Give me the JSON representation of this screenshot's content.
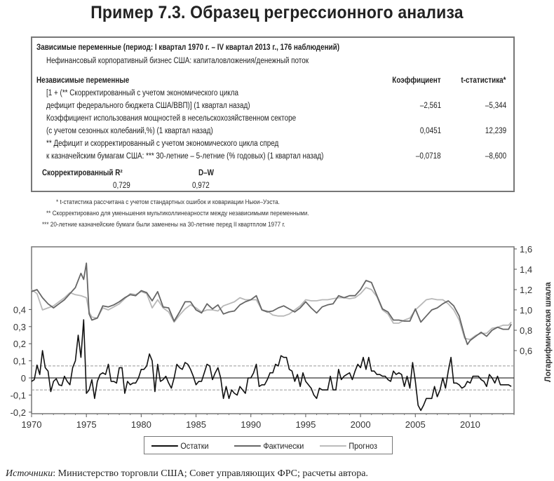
{
  "title": "Пример 7.3. Образец регрессионного анализа",
  "table": {
    "dependent_header": "Зависимые переменные (период: I квартал 1970 г. – IV квартал 2013 г., 176 наблюдений)",
    "dependent_var": "Нефинансовый корпоративный бизнес США: капиталовложения/денежный поток",
    "independent_header": "Независимые переменные",
    "coef_header": "Коэффициент",
    "tstat_header": "t-статистика*",
    "rows": [
      {
        "line1": "[1 + (** Скорректированный с учетом экономического цикла",
        "line2": "дефицит федерального бюджета США/ВВП)] (1 квартал назад)",
        "coef": "–2,561",
        "tstat": "–5,344"
      },
      {
        "line1": "Коэффициент использования мощностей в несельскохозяйственном секторе",
        "line2": "(с учетом сезонных колебаний,%) (1 квартал назад)",
        "coef": "0,0451",
        "tstat": "12,239"
      },
      {
        "line1": "** Дефицит и скорректированный с учетом экономического цикла спред",
        "line2": "к казначейским бумагам США: *** 30-летние – 5-летние (% годовых) (1 квартал назад)",
        "coef": "–0,0718",
        "tstat": "–8,600"
      }
    ],
    "r2_label": "Скорректированный R²",
    "r2_value": "0,729",
    "dw_label": "D–W",
    "dw_value": "0,972"
  },
  "footnotes": [
    "* t-статистика рассчитана с учетом стандартных ошибок и ковариации Ньюи–Уэста.",
    "** Скорректировано для уменьшения мультиколлинеарности между независимыми переменными.",
    "*** 20-летние казначейские бумаги были заменены на 30-летние перед II квартплом 1977 г."
  ],
  "chart_data": {
    "type": "line",
    "x_ticks": [
      "1970",
      "1975",
      "1980",
      "1985",
      "1990",
      "1995",
      "2000",
      "2005",
      "2010"
    ],
    "x_range": [
      1970,
      2014
    ],
    "left_axis": {
      "ticks": [
        "0,4",
        "0,3",
        "0,2",
        "0,1",
        "0",
        "-0,1",
        "-0,2"
      ],
      "range": [
        -0.2,
        0.4
      ]
    },
    "right_axis": {
      "label": "Логарифмическая шкала",
      "ticks": [
        "1,6",
        "1,4",
        "1,2",
        "1,0",
        "0,8",
        "0,6"
      ],
      "range": [
        0.6,
        1.6
      ],
      "scale": "log"
    },
    "reference_lines": [
      0.07,
      0,
      -0.07
    ],
    "series": [
      {
        "name": "Остатки",
        "axis": "left",
        "color": "#111111",
        "values": [
          -0.02,
          -0.01,
          0.075,
          0.02,
          0.16,
          0.06,
          0.04,
          -0.08,
          -0.02,
          -0.005,
          -0.04,
          -0.045,
          0.01,
          -0.02,
          -0.04,
          0.06,
          0.1,
          0.25,
          0.12,
          0.34,
          -0.09,
          -0.07,
          -0.01,
          -0.12,
          -0.02,
          0.02,
          0.03,
          0.02,
          0.08,
          -0.02,
          -0.02,
          -0.03,
          0.06,
          0.06,
          -0.09,
          -0.02,
          -0.04,
          -0.03,
          -0.03,
          0.0,
          0.05,
          0.05,
          0.07,
          0.14,
          0.1,
          -0.08,
          0.08,
          -0.02,
          -0.01,
          0.01,
          -0.03,
          -0.06,
          0.0,
          0.08,
          0.06,
          0.05,
          0.09,
          0.08,
          0.05,
          0.01,
          -0.04,
          -0.02,
          -0.02,
          0.03,
          0.08,
          0.07,
          -0.01,
          0.03,
          0.06,
          0.0,
          -0.12,
          -0.05,
          -0.12,
          -0.07,
          -0.09,
          -0.1,
          -0.05,
          -0.07,
          -0.09,
          0.0,
          0.0,
          0.03,
          0.08,
          -0.05,
          -0.04,
          -0.04,
          -0.01,
          0.03,
          0.03,
          0.08,
          0.07,
          0.13,
          0.12,
          0.12,
          0.05,
          0.04,
          -0.02,
          0.02,
          -0.05,
          0.03,
          -0.02,
          -0.04,
          -0.06,
          -0.1,
          -0.12,
          -0.06,
          -0.07,
          -0.07,
          -0.07,
          0.01,
          -0.07,
          -0.07,
          0.05,
          -0.01,
          0.01,
          0.02,
          0.03,
          -0.01,
          0.04,
          0.08,
          0.06,
          0.12,
          0.05,
          0.12,
          0.04,
          0.04,
          0.02,
          0.02,
          0.01,
          0.01,
          -0.01,
          -0.02,
          0.04,
          0.02,
          0.03,
          0.02,
          -0.05,
          0.01,
          -0.06,
          0.09,
          -0.02,
          -0.16,
          -0.19,
          -0.16,
          -0.12,
          -0.12,
          -0.12,
          -0.05,
          -0.11,
          -0.07,
          0.0,
          -0.06,
          0.04,
          0.12,
          -0.03,
          -0.03,
          -0.04,
          -0.06,
          -0.05,
          -0.02,
          -0.03,
          0.01,
          0.01,
          0.01,
          -0.01,
          -0.02,
          -0.05,
          0.02,
          0.0,
          -0.03,
          0.01,
          -0.04,
          -0.04,
          -0.04,
          -0.04,
          -0.05
        ]
      },
      {
        "name": "Фактически",
        "axis": "right",
        "color": "#666666",
        "points": [
          [
            1970,
            1.18
          ],
          [
            1970.5,
            1.2
          ],
          [
            1971,
            1.12
          ],
          [
            1971.5,
            1.06
          ],
          [
            1972,
            1.02
          ],
          [
            1972.5,
            1.06
          ],
          [
            1973,
            1.1
          ],
          [
            1973.5,
            1.16
          ],
          [
            1974,
            1.22
          ],
          [
            1974.5,
            1.36
          ],
          [
            1974.75,
            1.3
          ],
          [
            1975,
            1.46
          ],
          [
            1975.25,
            0.96
          ],
          [
            1975.5,
            0.9
          ],
          [
            1976,
            0.92
          ],
          [
            1976.5,
            1.04
          ],
          [
            1977,
            1.03
          ],
          [
            1977.5,
            1.05
          ],
          [
            1978,
            1.08
          ],
          [
            1978.5,
            1.12
          ],
          [
            1979,
            1.15
          ],
          [
            1979.5,
            1.14
          ],
          [
            1980,
            1.19
          ],
          [
            1980.5,
            1.17
          ],
          [
            1981,
            1.09
          ],
          [
            1981.5,
            1.18
          ],
          [
            1982,
            1.03
          ],
          [
            1982.5,
            1.02
          ],
          [
            1983,
            0.89
          ],
          [
            1983.5,
            0.98
          ],
          [
            1984,
            1.08
          ],
          [
            1984.5,
            1.08
          ],
          [
            1985,
            1.0
          ],
          [
            1985.5,
            0.97
          ],
          [
            1986,
            1.06
          ],
          [
            1986.5,
            1.01
          ],
          [
            1987,
            1.05
          ],
          [
            1987.5,
            0.96
          ],
          [
            1988,
            0.98
          ],
          [
            1988.5,
            0.99
          ],
          [
            1989,
            1.05
          ],
          [
            1989.5,
            1.08
          ],
          [
            1990,
            1.1
          ],
          [
            1990.5,
            1.14
          ],
          [
            1991,
            1.0
          ],
          [
            1991.5,
            0.98
          ],
          [
            1992,
            0.99
          ],
          [
            1992.5,
            1.02
          ],
          [
            1993,
            1.04
          ],
          [
            1993.5,
            1.01
          ],
          [
            1994,
            0.98
          ],
          [
            1994.5,
            1.02
          ],
          [
            1995,
            1.08
          ],
          [
            1995.5,
            1.02
          ],
          [
            1996,
            0.97
          ],
          [
            1996.5,
            1.03
          ],
          [
            1997,
            1.05
          ],
          [
            1997.5,
            1.06
          ],
          [
            1998,
            1.14
          ],
          [
            1998.5,
            1.12
          ],
          [
            1999,
            1.14
          ],
          [
            1999.5,
            1.14
          ],
          [
            2000,
            1.2
          ],
          [
            2000.5,
            1.29
          ],
          [
            2001,
            1.27
          ],
          [
            2001.5,
            1.14
          ],
          [
            2002,
            1.01
          ],
          [
            2002.5,
            0.98
          ],
          [
            2003,
            0.9
          ],
          [
            2003.5,
            0.9
          ],
          [
            2004,
            0.89
          ],
          [
            2004.5,
            0.89
          ],
          [
            2005,
            1.01
          ],
          [
            2005.5,
            0.88
          ],
          [
            2006,
            0.94
          ],
          [
            2006.5,
            1.0
          ],
          [
            2007,
            1.02
          ],
          [
            2007.5,
            1.06
          ],
          [
            2008,
            1.09
          ],
          [
            2008.5,
            1.04
          ],
          [
            2009,
            0.94
          ],
          [
            2009.5,
            0.74
          ],
          [
            2009.75,
            0.66
          ],
          [
            2010,
            0.7
          ],
          [
            2010.5,
            0.74
          ],
          [
            2011,
            0.78
          ],
          [
            2011.5,
            0.74
          ],
          [
            2012,
            0.8
          ],
          [
            2012.5,
            0.83
          ],
          [
            2013,
            0.81
          ],
          [
            2013.5,
            0.81
          ],
          [
            2013.75,
            0.86
          ]
        ]
      },
      {
        "name": "Прогноз",
        "axis": "right",
        "color": "#b8b8b8",
        "points": [
          [
            1970,
            1.2
          ],
          [
            1970.5,
            1.16
          ],
          [
            1971,
            1.0
          ],
          [
            1971.5,
            1.02
          ],
          [
            1972,
            1.04
          ],
          [
            1972.5,
            1.08
          ],
          [
            1973,
            1.12
          ],
          [
            1973.5,
            1.17
          ],
          [
            1974,
            1.15
          ],
          [
            1974.5,
            1.14
          ],
          [
            1975,
            1.12
          ],
          [
            1975.25,
            0.98
          ],
          [
            1975.5,
            0.93
          ],
          [
            1976,
            0.92
          ],
          [
            1976.5,
            1.02
          ],
          [
            1977,
            1.0
          ],
          [
            1977.5,
            1.03
          ],
          [
            1978,
            1.06
          ],
          [
            1978.5,
            1.11
          ],
          [
            1979,
            1.16
          ],
          [
            1979.5,
            1.15
          ],
          [
            1980,
            1.18
          ],
          [
            1980.5,
            1.16
          ],
          [
            1981,
            1.02
          ],
          [
            1981.5,
            1.1
          ],
          [
            1982,
            1.02
          ],
          [
            1982.5,
            0.98
          ],
          [
            1983,
            0.88
          ],
          [
            1983.5,
            0.95
          ],
          [
            1984,
            1.01
          ],
          [
            1984.5,
            1.05
          ],
          [
            1985,
            1.02
          ],
          [
            1985.5,
            0.98
          ],
          [
            1986,
            1.0
          ],
          [
            1986.5,
            1.0
          ],
          [
            1987,
            0.99
          ],
          [
            1987.5,
            1.04
          ],
          [
            1988,
            1.06
          ],
          [
            1988.5,
            1.08
          ],
          [
            1989,
            1.12
          ],
          [
            1989.5,
            1.1
          ],
          [
            1990,
            1.1
          ],
          [
            1990.5,
            1.1
          ],
          [
            1991,
            1.0
          ],
          [
            1991.5,
            0.99
          ],
          [
            1992,
            0.95
          ],
          [
            1992.5,
            0.94
          ],
          [
            1993,
            0.94
          ],
          [
            1993.5,
            0.96
          ],
          [
            1994,
            1.0
          ],
          [
            1994.5,
            1.04
          ],
          [
            1995,
            1.1
          ],
          [
            1995.5,
            1.09
          ],
          [
            1996,
            1.09
          ],
          [
            1996.5,
            1.1
          ],
          [
            1997,
            1.1
          ],
          [
            1997.5,
            1.11
          ],
          [
            1998,
            1.12
          ],
          [
            1998.5,
            1.12
          ],
          [
            1999,
            1.11
          ],
          [
            1999.5,
            1.12
          ],
          [
            2000,
            1.16
          ],
          [
            2000.5,
            1.22
          ],
          [
            2001,
            1.2
          ],
          [
            2001.5,
            1.13
          ],
          [
            2002,
            1.0
          ],
          [
            2002.5,
            0.96
          ],
          [
            2003,
            0.87
          ],
          [
            2003.5,
            0.87
          ],
          [
            2004,
            0.9
          ],
          [
            2004.5,
            0.92
          ],
          [
            2005,
            1.0
          ],
          [
            2005.5,
            1.05
          ],
          [
            2006,
            1.1
          ],
          [
            2006.5,
            1.11
          ],
          [
            2007,
            1.1
          ],
          [
            2007.5,
            1.1
          ],
          [
            2008,
            1.06
          ],
          [
            2008.5,
            1.0
          ],
          [
            2009,
            0.9
          ],
          [
            2009.5,
            0.72
          ],
          [
            2010,
            0.71
          ],
          [
            2010.5,
            0.75
          ],
          [
            2011,
            0.77
          ],
          [
            2011.5,
            0.77
          ],
          [
            2012,
            0.82
          ],
          [
            2012.5,
            0.83
          ],
          [
            2013,
            0.85
          ],
          [
            2013.5,
            0.85
          ],
          [
            2013.75,
            0.88
          ]
        ]
      }
    ],
    "legend": {
      "position": "bottom",
      "items": [
        "Остатки",
        "Фактически",
        "Прогноз"
      ]
    }
  },
  "source": {
    "label": "Источники",
    "text": ": Министерство торговли США; Совет управляющих ФРС; расчеты автора."
  }
}
